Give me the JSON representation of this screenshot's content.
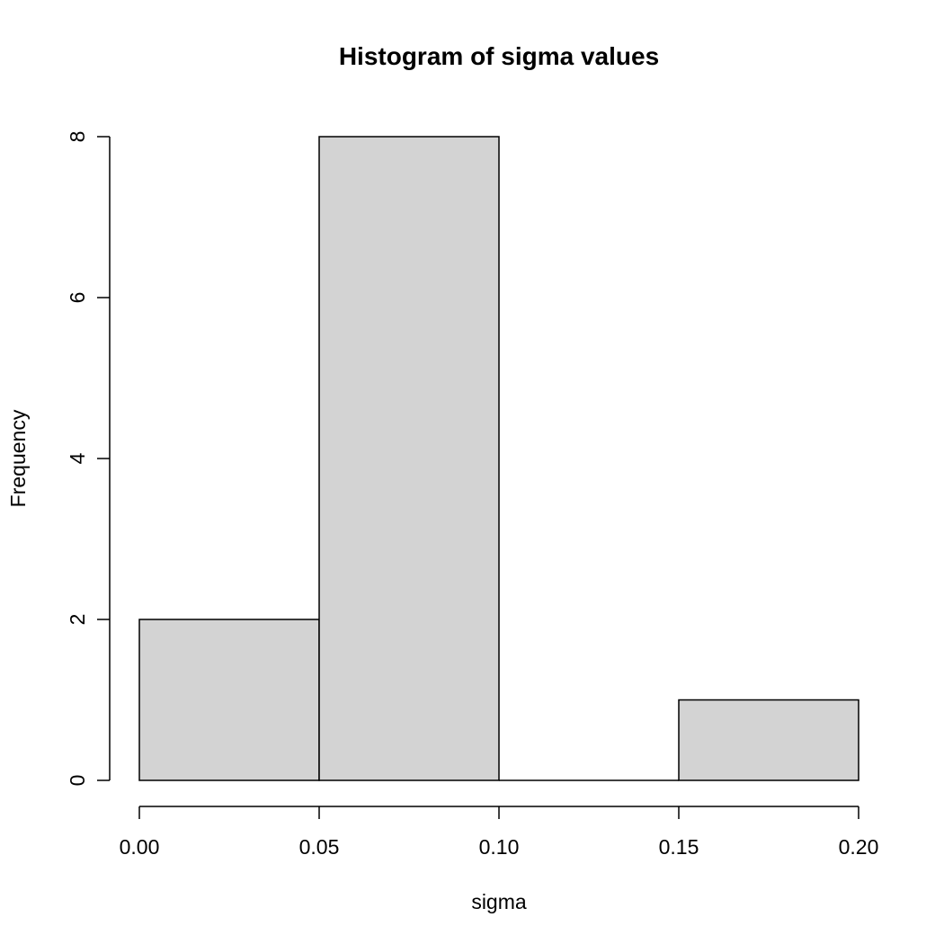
{
  "chart_data": {
    "type": "bar",
    "title": "Histogram of sigma values",
    "xlabel": "sigma",
    "ylabel": "Frequency",
    "bins": [
      {
        "from": 0.0,
        "to": 0.05,
        "count": 2
      },
      {
        "from": 0.05,
        "to": 0.1,
        "count": 8
      },
      {
        "from": 0.1,
        "to": 0.15,
        "count": 0
      },
      {
        "from": 0.15,
        "to": 0.2,
        "count": 1
      }
    ],
    "xlim": [
      0,
      0.2
    ],
    "ylim": [
      0,
      8
    ],
    "x_ticks": [
      "0.00",
      "0.05",
      "0.10",
      "0.15",
      "0.20"
    ],
    "x_tick_values": [
      0,
      0.05,
      0.1,
      0.15,
      0.2
    ],
    "y_ticks": [
      "0",
      "2",
      "4",
      "6",
      "8"
    ],
    "y_tick_values": [
      0,
      2,
      4,
      6,
      8
    ],
    "grid": false,
    "bar_color": "#d3d3d3",
    "edge_color": "#000000"
  }
}
